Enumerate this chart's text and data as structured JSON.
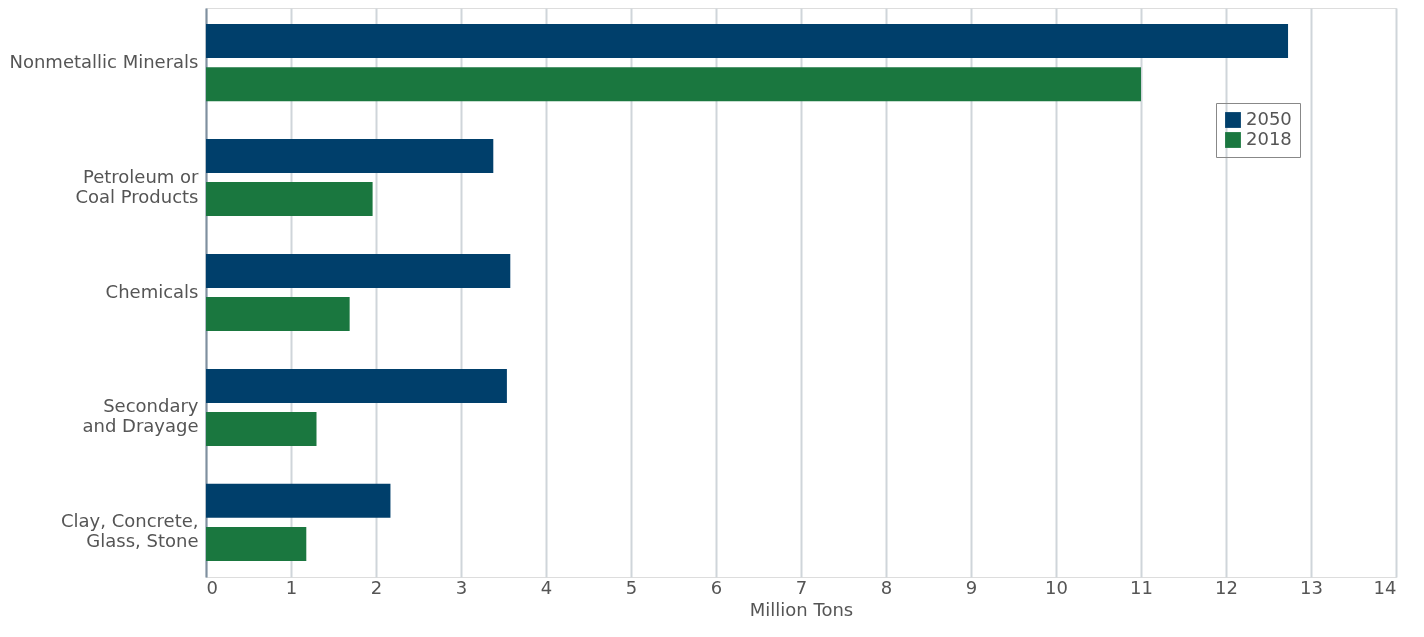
{
  "chart_data": {
    "type": "bar",
    "orientation": "horizontal",
    "xlabel": "Million Tons",
    "categories": [
      "Nonmetallic Minerals",
      "Petroleum or\nCoal Products",
      "Chemicals",
      "Secondary\nand Drayage",
      "Clay, Concrete,\nGlass, Stone"
    ],
    "series": [
      {
        "name": "2050",
        "color": "#003f6b",
        "values": [
          12.73,
          3.38,
          3.58,
          3.54,
          2.17
        ]
      },
      {
        "name": "2018",
        "color": "#1a773f",
        "values": [
          11.0,
          1.96,
          1.69,
          1.3,
          1.18
        ]
      }
    ],
    "xlim": [
      0,
      14
    ],
    "xticks": [
      0,
      1,
      2,
      3,
      4,
      5,
      6,
      7,
      8,
      9,
      10,
      11,
      12,
      13,
      14
    ],
    "grid": "x",
    "legend": "right"
  }
}
